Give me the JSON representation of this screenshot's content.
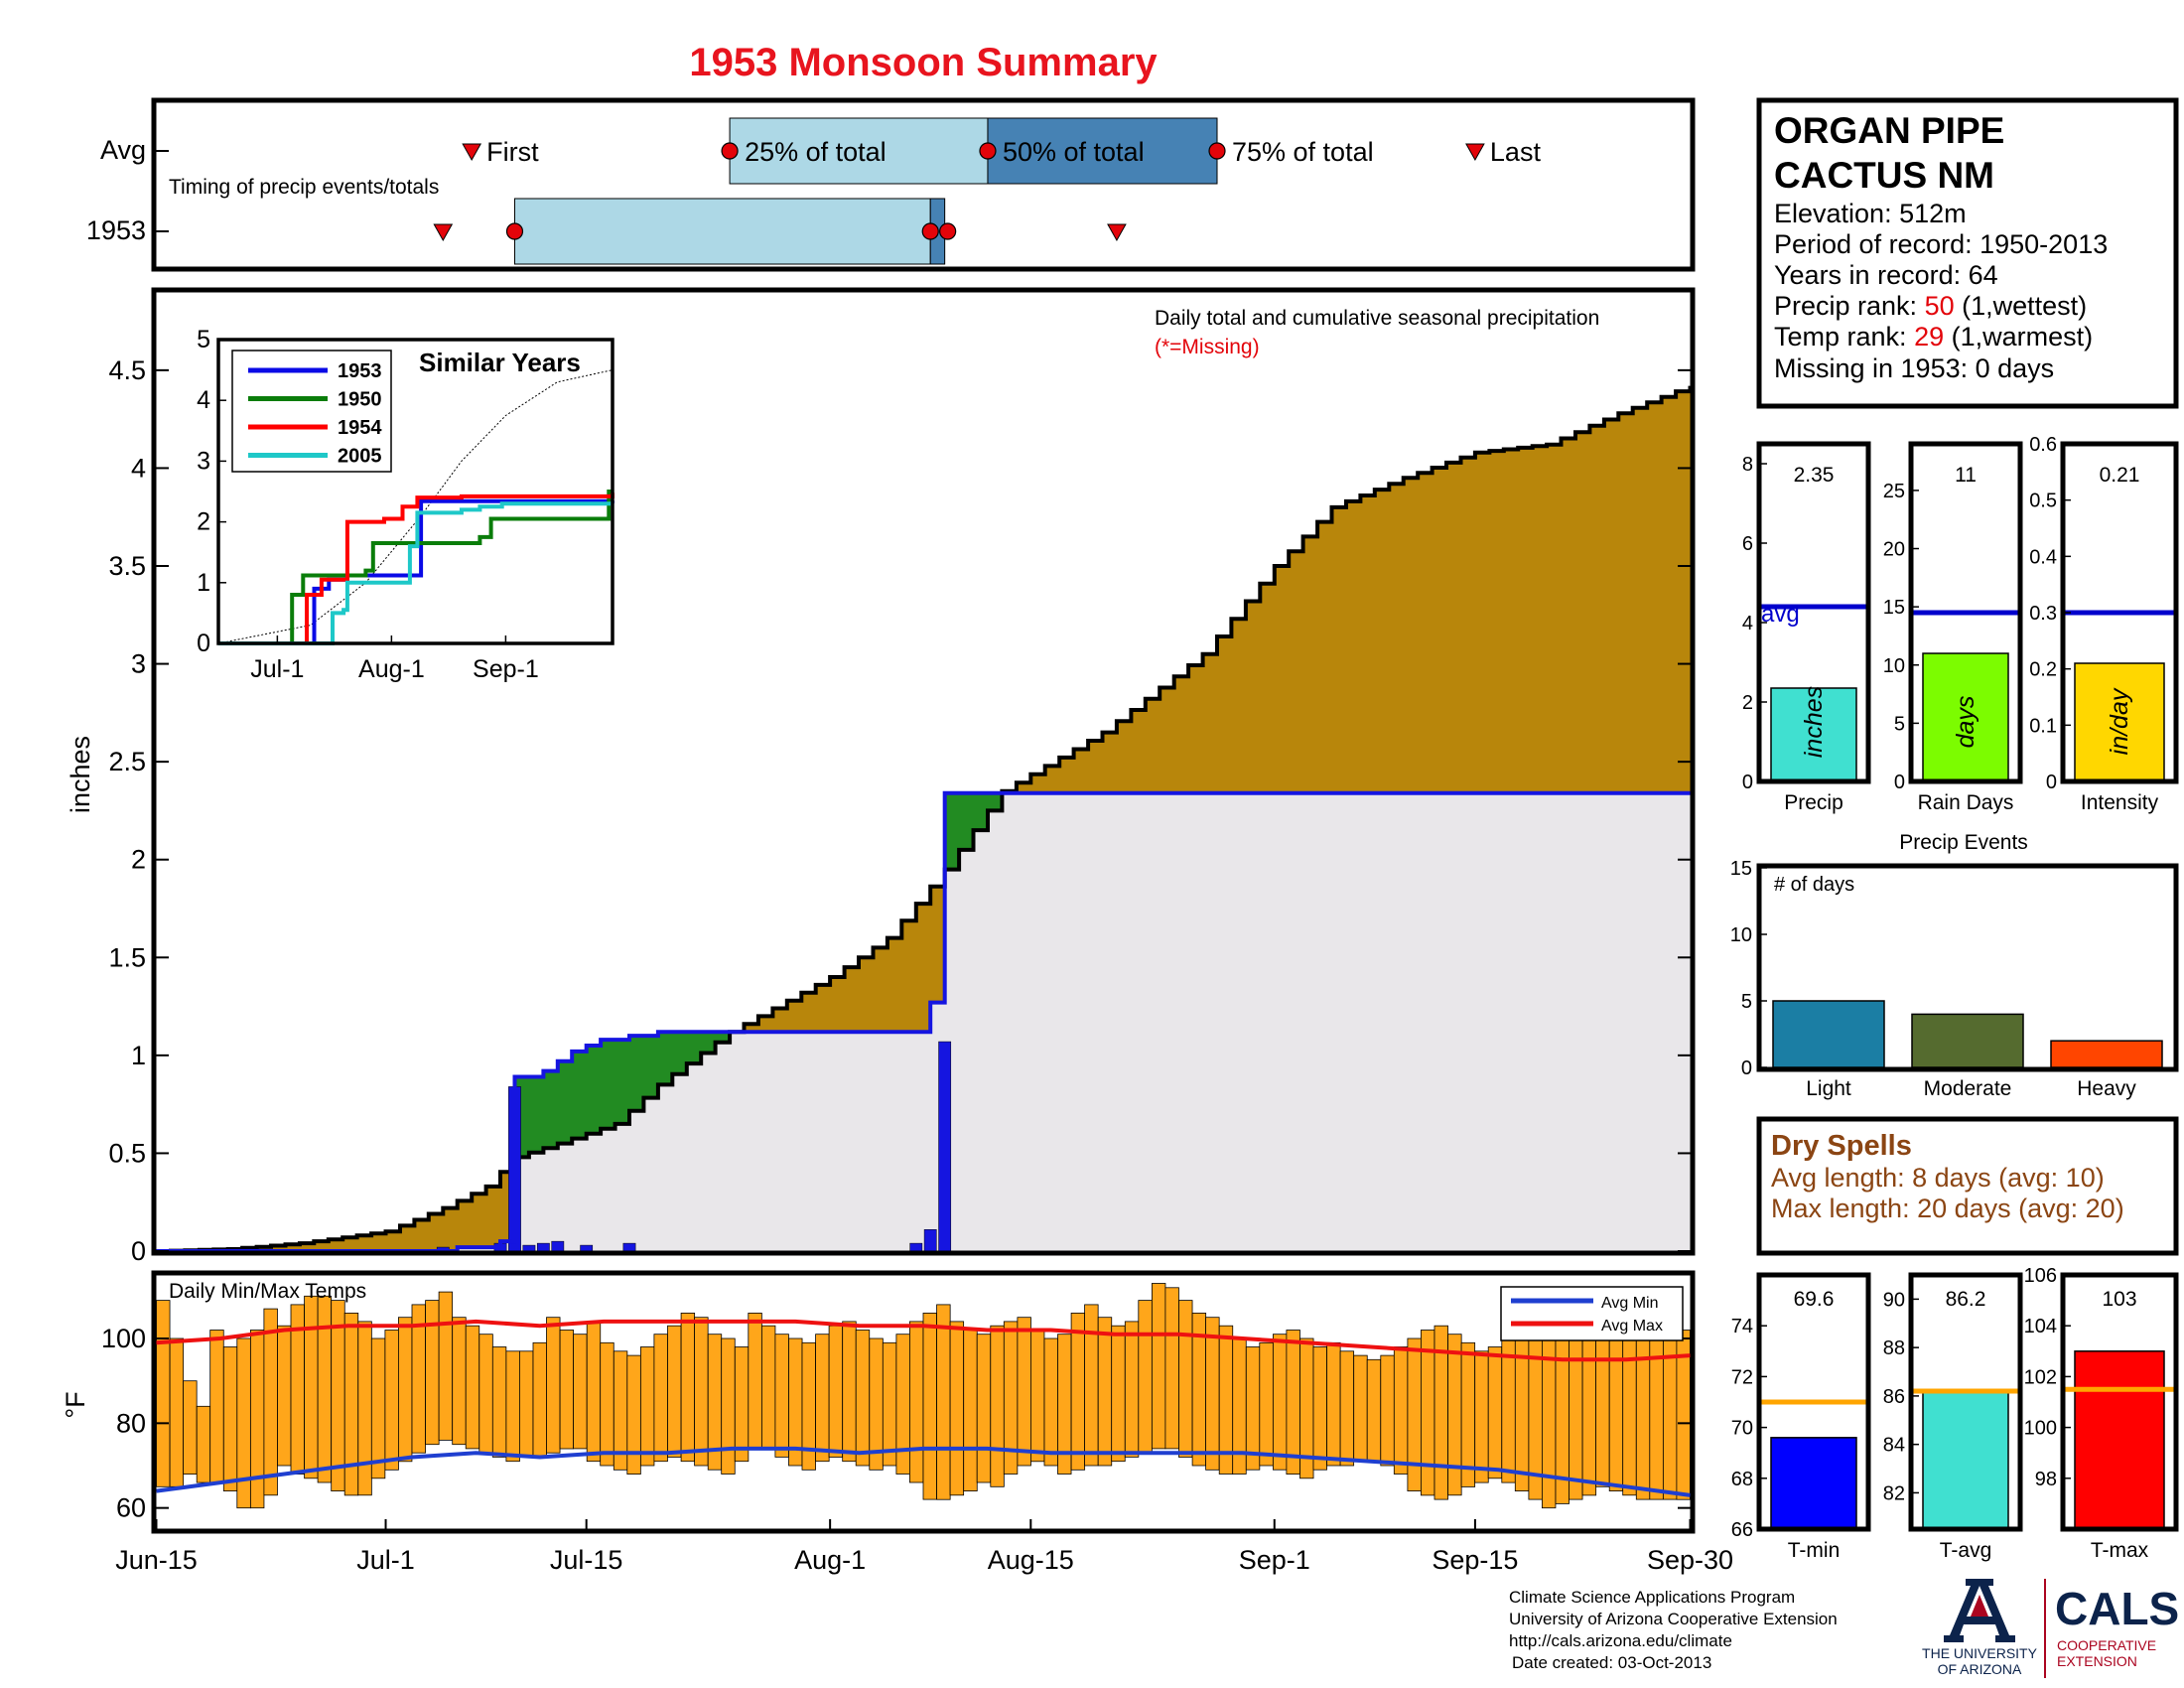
{
  "title": "1953 Monsoon Summary",
  "colors": {
    "title": "#e8141e",
    "cumulative_fill": "#b8860b",
    "avg_fill": "#e9e7ea",
    "above_avg_fill": "#228b22",
    "line_1953": "#1515e0",
    "daily_bar": "#1515e0",
    "temp_bar": "#ffa61a",
    "avg_max": "#ee1111",
    "avg_min": "#1f3fd0",
    "timing_light": "#add8e6",
    "timing_dark": "#4682b4",
    "marker": "#e3040a",
    "dry_spell_text": "#8b4513",
    "precip_bar": "#40e0d0",
    "raindays_bar": "#7cfc00",
    "intensity_bar": "#ffd700",
    "tmin_bar": "#0000ff",
    "tavg_bar": "#40e0d0",
    "tmax_bar": "#ff0000",
    "avg_line_blue": "#0000cc",
    "avg_line_orange": "#ffa500",
    "event_light": "#1b7ea4",
    "event_moderate": "#556b2f",
    "event_heavy": "#ff4500",
    "red_rank": "#e3040a"
  },
  "x_axis": {
    "labels": [
      "Jun-15",
      "Jul-1",
      "Jul-15",
      "Aug-1",
      "Aug-15",
      "Sep-1",
      "Sep-15",
      "Sep-30"
    ],
    "dates": [
      "1953-06-15",
      "1953-07-01",
      "1953-07-15",
      "1953-08-01",
      "1953-08-15",
      "1953-09-01",
      "1953-09-15",
      "1953-09-30"
    ]
  },
  "timing": {
    "label": "Timing of precip events/totals",
    "rows": [
      "Avg",
      "1953"
    ],
    "marker_labels": [
      "First",
      "25% of total",
      "50% of total",
      "75% of total",
      "Last"
    ],
    "avg": {
      "first": "1953-07-07",
      "p25": "1953-07-25",
      "p50": "1953-08-12",
      "p75": "1953-08-28",
      "last": "1953-09-15"
    },
    "y1953": {
      "first": "1953-07-05",
      "p25": "1953-07-10",
      "p50": "1953-08-08",
      "p75": "1953-08-09",
      "last": "1953-08-21"
    }
  },
  "precip_chart": {
    "ylabel": "inches",
    "ylim": [
      0,
      4.9
    ],
    "yticks": [
      "0",
      "0.5",
      "1",
      "1.5",
      "2",
      "2.5",
      "3",
      "3.5",
      "4",
      "4.5"
    ],
    "note": "Daily total and cumulative seasonal precipitation",
    "missing_note": "(*=Missing)",
    "avg_cumulative": [
      [
        "1953-06-15",
        0.0
      ],
      [
        "1953-06-20",
        0.01
      ],
      [
        "1953-06-25",
        0.04
      ],
      [
        "1953-07-01",
        0.1
      ],
      [
        "1953-07-05",
        0.22
      ],
      [
        "1953-07-08",
        0.33
      ],
      [
        "1953-07-10",
        0.48
      ],
      [
        "1953-07-13",
        0.55
      ],
      [
        "1953-07-17",
        0.65
      ],
      [
        "1953-07-20",
        0.85
      ],
      [
        "1953-07-25",
        1.12
      ],
      [
        "1953-08-01",
        1.4
      ],
      [
        "1953-08-05",
        1.6
      ],
      [
        "1953-08-09",
        1.95
      ],
      [
        "1953-08-13",
        2.35
      ],
      [
        "1953-08-20",
        2.65
      ],
      [
        "1953-08-27",
        3.05
      ],
      [
        "1953-09-01",
        3.5
      ],
      [
        "1953-09-05",
        3.8
      ],
      [
        "1953-09-10",
        3.95
      ],
      [
        "1953-09-15",
        4.08
      ],
      [
        "1953-09-20",
        4.12
      ],
      [
        "1953-09-25",
        4.28
      ],
      [
        "1953-09-30",
        4.42
      ]
    ],
    "cumulative_1953": [
      [
        "1953-06-15",
        0.0
      ],
      [
        "1953-07-05",
        0.0
      ],
      [
        "1953-07-06",
        0.02
      ],
      [
        "1953-07-09",
        0.05
      ],
      [
        "1953-07-10",
        0.89
      ],
      [
        "1953-07-12",
        0.92
      ],
      [
        "1953-07-13",
        0.97
      ],
      [
        "1953-07-14",
        1.02
      ],
      [
        "1953-07-15",
        1.05
      ],
      [
        "1953-07-16",
        1.08
      ],
      [
        "1953-07-18",
        1.1
      ],
      [
        "1953-07-20",
        1.12
      ],
      [
        "1953-08-07",
        1.12
      ],
      [
        "1953-08-08",
        1.27
      ],
      [
        "1953-08-09",
        2.34
      ],
      [
        "1953-08-13",
        2.34
      ],
      [
        "1953-09-30",
        2.35
      ]
    ],
    "daily_1953": [
      [
        "1953-07-05",
        0.02
      ],
      [
        "1953-07-09",
        0.04
      ],
      [
        "1953-07-10",
        0.84
      ],
      [
        "1953-07-11",
        0.03
      ],
      [
        "1953-07-12",
        0.04
      ],
      [
        "1953-07-13",
        0.05
      ],
      [
        "1953-07-15",
        0.03
      ],
      [
        "1953-07-18",
        0.04
      ],
      [
        "1953-08-07",
        0.04
      ],
      [
        "1953-08-08",
        0.11
      ],
      [
        "1953-08-09",
        1.07
      ]
    ]
  },
  "similar_years": {
    "title": "Similar Years",
    "legend": [
      "1953",
      "1950",
      "1954",
      "2005"
    ],
    "line_colors": [
      "#0a0ae6",
      "#0a7d0a",
      "#ff0000",
      "#1ec8c8"
    ],
    "yticks": [
      "0",
      "1",
      "2",
      "3",
      "4",
      "5"
    ],
    "xticks": [
      "Jul-1",
      "Aug-1",
      "Sep-1"
    ],
    "series": [
      [
        [
          "1953-06-15",
          0
        ],
        [
          "1953-07-10",
          0
        ],
        [
          "1953-07-11",
          0.9
        ],
        [
          "1953-07-15",
          1.05
        ],
        [
          "1953-07-20",
          1.12
        ],
        [
          "1953-08-08",
          1.12
        ],
        [
          "1953-08-09",
          2.34
        ],
        [
          "1953-09-30",
          2.35
        ]
      ],
      [
        [
          "1953-06-15",
          0
        ],
        [
          "1953-07-04",
          0
        ],
        [
          "1953-07-05",
          0.8
        ],
        [
          "1953-07-08",
          1.12
        ],
        [
          "1953-07-25",
          1.2
        ],
        [
          "1953-07-27",
          1.65
        ],
        [
          "1953-08-25",
          1.75
        ],
        [
          "1953-08-28",
          2.05
        ],
        [
          "1953-09-28",
          2.05
        ],
        [
          "1953-09-29",
          2.5
        ],
        [
          "1953-09-30",
          2.5
        ]
      ],
      [
        [
          "1953-06-15",
          0
        ],
        [
          "1953-07-08",
          0
        ],
        [
          "1953-07-09",
          0.8
        ],
        [
          "1953-07-13",
          1.05
        ],
        [
          "1953-07-18",
          1.05
        ],
        [
          "1953-07-20",
          2.0
        ],
        [
          "1953-07-30",
          2.05
        ],
        [
          "1953-08-04",
          2.25
        ],
        [
          "1953-08-08",
          2.4
        ],
        [
          "1953-08-20",
          2.42
        ],
        [
          "1953-09-30",
          2.48
        ]
      ],
      [
        [
          "1953-06-15",
          0
        ],
        [
          "1953-07-14",
          0
        ],
        [
          "1953-07-16",
          0.5
        ],
        [
          "1953-07-19",
          0.55
        ],
        [
          "1953-07-20",
          1.0
        ],
        [
          "1953-08-05",
          1.0
        ],
        [
          "1953-08-06",
          1.6
        ],
        [
          "1953-08-08",
          2.15
        ],
        [
          "1953-08-20",
          2.2
        ],
        [
          "1953-08-25",
          2.25
        ],
        [
          "1953-08-31",
          2.3
        ],
        [
          "1953-09-30",
          2.3
        ]
      ]
    ],
    "avg_series": [
      [
        "1953-06-15",
        0
      ],
      [
        "1953-07-10",
        0.3
      ],
      [
        "1953-07-25",
        1.0
      ],
      [
        "1953-08-09",
        2.1
      ],
      [
        "1953-08-20",
        3.0
      ],
      [
        "1953-09-01",
        3.75
      ],
      [
        "1953-09-15",
        4.3
      ],
      [
        "1953-09-30",
        4.5
      ]
    ]
  },
  "temp_chart": {
    "title": "Daily Min/Max Temps",
    "ylabel": "°F",
    "ylim": [
      55,
      115
    ],
    "yticks": [
      "60",
      "80",
      "100"
    ],
    "legend": [
      "Avg Min",
      "Avg Max"
    ],
    "tmin": [
      65,
      65,
      68,
      66,
      66,
      64,
      60,
      60,
      63,
      70,
      68,
      67,
      66,
      64,
      63,
      63,
      67,
      69,
      71,
      73,
      75,
      76,
      75,
      74,
      73,
      72,
      71,
      72,
      72,
      73,
      74,
      74,
      71,
      70,
      69,
      68,
      70,
      71,
      72,
      71,
      70,
      69,
      68,
      71,
      74,
      74,
      72,
      70,
      69,
      71,
      72,
      71,
      70,
      69,
      70,
      68,
      66,
      62,
      62,
      63,
      64,
      66,
      65,
      68,
      70,
      71,
      70,
      68,
      69,
      70,
      70,
      71,
      72,
      73,
      74,
      74,
      72,
      70,
      69,
      68,
      68,
      69,
      70,
      69,
      68,
      67,
      69,
      70,
      70,
      71,
      71,
      70,
      68,
      64,
      63,
      62,
      63,
      65,
      66,
      67,
      66,
      64,
      62,
      60,
      61,
      62,
      63,
      65,
      64,
      63,
      62,
      62,
      62,
      62
    ],
    "tmax": [
      109,
      100,
      90,
      84,
      102,
      98,
      100,
      102,
      107,
      103,
      108,
      110,
      110,
      109,
      106,
      104,
      100,
      102,
      105,
      108,
      109,
      111,
      105,
      103,
      101,
      98,
      97,
      97,
      99,
      105,
      102,
      101,
      104,
      99,
      97,
      96,
      98,
      101,
      103,
      106,
      105,
      101,
      100,
      98,
      106,
      103,
      101,
      100,
      99,
      101,
      103,
      104,
      102,
      100,
      99,
      101,
      104,
      106,
      108,
      104,
      102,
      101,
      103,
      104,
      105,
      102,
      100,
      101,
      106,
      108,
      105,
      103,
      104,
      109,
      113,
      112,
      109,
      106,
      105,
      103,
      100,
      98,
      99,
      101,
      102,
      100,
      98,
      99,
      97,
      96,
      95,
      96,
      98,
      100,
      102,
      103,
      101,
      99,
      97,
      98,
      100,
      104,
      106,
      106,
      106,
      106,
      106,
      104,
      102,
      104,
      106,
      106,
      104,
      102
    ],
    "avg_max": [
      99,
      100,
      102,
      103,
      103,
      104,
      103,
      104,
      104,
      104,
      104,
      103,
      103,
      102,
      102,
      101,
      101,
      100,
      99,
      98,
      97,
      96,
      95,
      95,
      96
    ],
    "avg_min": [
      64,
      66,
      68,
      70,
      72,
      73,
      72,
      73,
      73,
      74,
      74,
      73,
      74,
      74,
      73,
      73,
      73,
      73,
      72,
      71,
      70,
      69,
      67,
      65,
      63
    ]
  },
  "station": {
    "name_line1": "ORGAN PIPE",
    "name_line2": "CACTUS NM",
    "elevation": "Elevation: 512m",
    "period": "Period of record: 1950-2013",
    "years": "Years in record: 64",
    "precip_rank_label": "Precip rank: ",
    "precip_rank_value": "50",
    "precip_rank_suffix": " (1,wettest)",
    "temp_rank_label": "Temp rank: ",
    "temp_rank_value": "29",
    "temp_rank_suffix": " (1,warmest)",
    "missing": "Missing in 1953: 0 days"
  },
  "summary_bars": [
    {
      "label": "Precip",
      "value": 2.35,
      "value_text": "2.35",
      "avg": 4.4,
      "unit": "inches",
      "ylim": [
        0,
        8.5
      ],
      "yticks": [
        0,
        2,
        4,
        6,
        8
      ],
      "avg_label": "avg"
    },
    {
      "label": "Rain Days",
      "value": 11,
      "value_text": "11",
      "avg": 14.5,
      "unit": "days",
      "ylim": [
        0,
        29
      ],
      "yticks": [
        0,
        5,
        10,
        15,
        20,
        25
      ]
    },
    {
      "label": "Intensity",
      "value": 0.21,
      "value_text": "0.21",
      "avg": 0.3,
      "unit": "in/day",
      "ylim": [
        0,
        0.6
      ],
      "yticks": [
        0,
        0.1,
        0.2,
        0.3,
        0.4,
        0.5,
        0.6
      ]
    }
  ],
  "precip_events": {
    "title": "Precip Events",
    "ylabel": "# of days",
    "ylim": [
      0,
      15
    ],
    "yticks": [
      0,
      5,
      10,
      15
    ],
    "categories": [
      "Light",
      "Moderate",
      "Heavy"
    ],
    "values": [
      5,
      4,
      2
    ]
  },
  "dry_spells": {
    "title": "Dry Spells",
    "avg": "Avg length: 8 days (avg: 10)",
    "max": "Max length: 20 days (avg: 20)"
  },
  "temp_bars": [
    {
      "label": "T-min",
      "value": 69.6,
      "value_text": "69.6",
      "avg": 71.0,
      "ylim": [
        66,
        76
      ],
      "yticks": [
        66,
        68,
        70,
        72,
        74
      ]
    },
    {
      "label": "T-avg",
      "value": 86.2,
      "value_text": "86.2",
      "avg": 86.2,
      "ylim": [
        80.5,
        91
      ],
      "yticks": [
        82,
        84,
        86,
        88,
        90
      ]
    },
    {
      "label": "T-max",
      "value": 103,
      "value_text": "103",
      "avg": 101.5,
      "ylim": [
        96,
        106
      ],
      "yticks": [
        98,
        100,
        102,
        104,
        106
      ]
    }
  ],
  "footer": {
    "line1": "Climate Science Applications Program",
    "line2": "University of Arizona Cooperative Extension",
    "line3": "http://cals.arizona.edu/climate",
    "line4": "Date created: 03-Oct-2013",
    "ua_line1": "THE UNIVERSITY",
    "ua_line2": "OF ARIZONA",
    "cals": "CALS",
    "coop1": "COOPERATIVE",
    "coop2": "EXTENSION"
  }
}
